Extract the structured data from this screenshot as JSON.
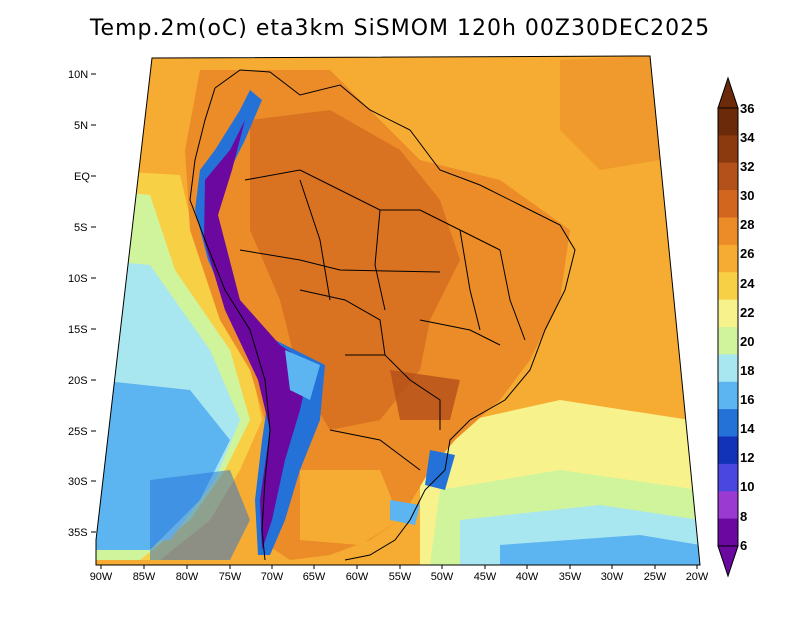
{
  "title": "Temp.2m(oC) eta3km SiSMOM 120h 00Z30DEC2025",
  "map": {
    "lat_labels": [
      "10N",
      "5N",
      "EQ",
      "5S",
      "10S",
      "15S",
      "20S",
      "25S",
      "30S",
      "35S"
    ],
    "lon_labels": [
      "90W",
      "85W",
      "80W",
      "75W",
      "70W",
      "65W",
      "60W",
      "55W",
      "50W",
      "45W",
      "40W",
      "35W",
      "30W",
      "25W",
      "20W"
    ]
  },
  "colorbar": {
    "labels": [
      "36",
      "34",
      "32",
      "30",
      "28",
      "26",
      "24",
      "22",
      "20",
      "18",
      "16",
      "14",
      "12",
      "10",
      "8",
      "6"
    ],
    "colors": [
      "#6b2a0a",
      "#8b3a10",
      "#b4501a",
      "#d2661e",
      "#ec8c28",
      "#f6ac32",
      "#f8d046",
      "#f8f28c",
      "#d0f49c",
      "#a8e6f0",
      "#5cb4f0",
      "#2472d8",
      "#1232b8",
      "#4a46e0",
      "#9a3ad0",
      "#6a08a0"
    ]
  }
}
